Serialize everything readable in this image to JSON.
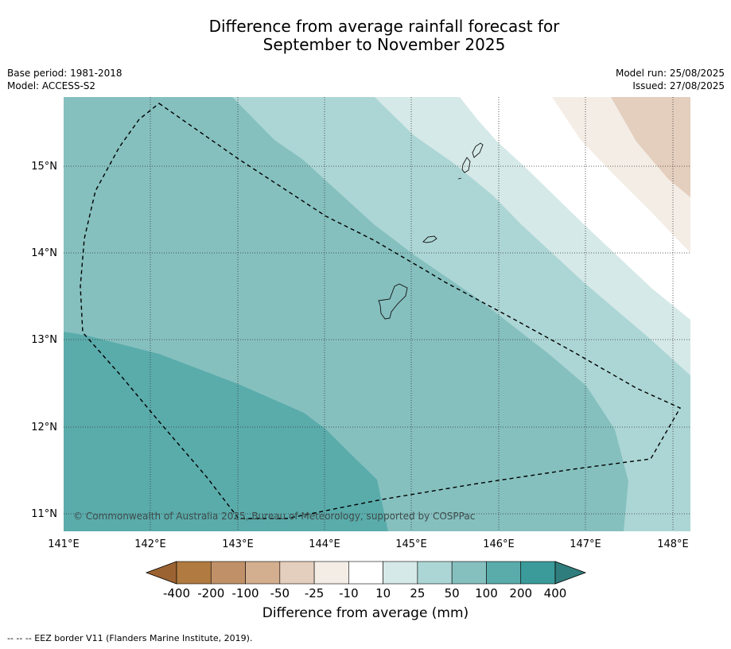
{
  "title_line1": "Difference from average rainfall forecast for",
  "title_line2": "September to November 2025",
  "meta": {
    "base_period": "Base period: 1981-2018",
    "model": "Model: ACCESS-S2",
    "model_run": "Model run: 25/08/2025",
    "issued": "Issued: 27/08/2025"
  },
  "map": {
    "lat_labels": [
      "15°N",
      "14°N",
      "13°N",
      "12°N",
      "11°N"
    ],
    "lon_labels": [
      "141°E",
      "142°E",
      "143°E",
      "144°E",
      "145°E",
      "146°E",
      "147°E",
      "148°E"
    ],
    "copyright": "© Commonwealth of Australia 2025, Bureau of Meteorology, supported by COSPPac"
  },
  "colorbar": {
    "ticks": [
      "-400",
      "-200",
      "-100",
      "-50",
      "-25",
      "-10",
      "10",
      "25",
      "50",
      "100",
      "200",
      "400"
    ],
    "label": "Difference from average (mm)",
    "colors": [
      "#9c6332",
      "#b07a40",
      "#c09168",
      "#d3ae8f",
      "#e4cebd",
      "#f4ede6",
      "#ffffff",
      "#d5e9e8",
      "#acd6d5",
      "#85c0bf",
      "#5aacab",
      "#3a9b9a",
      "#2f7d7c"
    ]
  },
  "footer": "--  --  -- EEZ border V11 (Flanders Marine Institute, 2019)."
}
